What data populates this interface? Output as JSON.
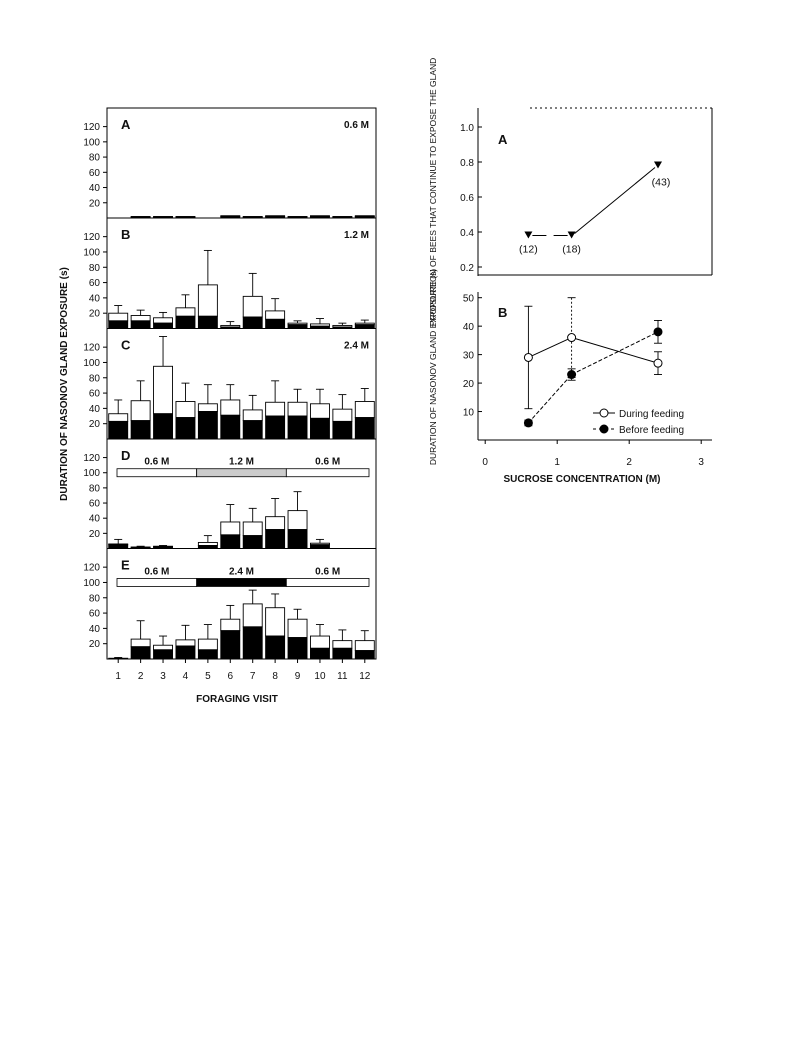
{
  "chart_data": [
    {
      "type": "bar",
      "stacked": true,
      "xlabel": "FORAGING VISIT",
      "ylabel": "DURATION OF NASONOV GLAND EXPOSURE (s)",
      "categories": [
        "1",
        "2",
        "3",
        "4",
        "5",
        "6",
        "7",
        "8",
        "9",
        "10",
        "11",
        "12"
      ],
      "yticks": [
        20,
        40,
        60,
        80,
        100,
        120
      ],
      "ylim": [
        0,
        140
      ],
      "series_names": [
        "Before feeding (black)",
        "During feeding (white)"
      ],
      "panels": [
        {
          "label": "A",
          "concentration": "0.6 M",
          "before": [
            0,
            1,
            1,
            1,
            0,
            2,
            1,
            2,
            1,
            2,
            1,
            2
          ],
          "total": [
            0,
            2,
            2,
            2,
            0,
            3,
            2,
            3,
            2,
            3,
            2,
            3
          ],
          "error": [
            0,
            0,
            0,
            0,
            0,
            0,
            0,
            0,
            0,
            0,
            0,
            0
          ]
        },
        {
          "label": "B",
          "concentration": "1.2 M",
          "before": [
            10,
            10,
            7,
            16,
            16,
            2,
            15,
            12,
            5,
            3,
            2,
            5
          ],
          "total": [
            20,
            17,
            14,
            27,
            57,
            4,
            42,
            23,
            7,
            6,
            4,
            7
          ],
          "error": [
            30,
            24,
            21,
            44,
            102,
            9,
            72,
            39,
            10,
            13,
            7,
            11
          ]
        },
        {
          "label": "C",
          "concentration": "2.4 M",
          "before": [
            23,
            24,
            33,
            28,
            36,
            31,
            24,
            30,
            30,
            27,
            23,
            28
          ],
          "total": [
            33,
            50,
            95,
            49,
            46,
            51,
            38,
            48,
            48,
            46,
            39,
            49
          ],
          "error": [
            51,
            76,
            134,
            73,
            71,
            71,
            57,
            76,
            65,
            65,
            58,
            66
          ]
        },
        {
          "label": "D",
          "segments": [
            {
              "text": "0.6 M",
              "from": 1,
              "to": 4,
              "fill": "#ffffff"
            },
            {
              "text": "1.2 M",
              "from": 5,
              "to": 8,
              "fill": "#cccccc"
            },
            {
              "text": "0.6 M",
              "from": 9,
              "to": 12,
              "fill": "#ffffff"
            }
          ],
          "before": [
            5,
            1,
            2,
            0,
            4,
            18,
            17,
            25,
            25,
            5,
            0,
            0
          ],
          "total": [
            6,
            2,
            3,
            0,
            8,
            35,
            35,
            42,
            50,
            7,
            0,
            0
          ],
          "error": [
            12,
            3,
            4,
            0,
            17,
            58,
            53,
            66,
            75,
            12,
            0,
            0
          ]
        },
        {
          "label": "E",
          "segments": [
            {
              "text": "0.6 M",
              "from": 1,
              "to": 4,
              "fill": "#ffffff"
            },
            {
              "text": "2.4 M",
              "from": 5,
              "to": 8,
              "fill": "#000000"
            },
            {
              "text": "0.6 M",
              "from": 9,
              "to": 12,
              "fill": "#ffffff"
            }
          ],
          "before": [
            1,
            16,
            12,
            17,
            12,
            37,
            42,
            30,
            28,
            14,
            14,
            11
          ],
          "total": [
            1,
            26,
            18,
            25,
            26,
            52,
            72,
            67,
            52,
            30,
            24,
            24
          ],
          "error": [
            2,
            50,
            30,
            44,
            45,
            70,
            90,
            85,
            65,
            45,
            38,
            37
          ]
        }
      ]
    },
    {
      "type": "line",
      "label": "A",
      "ylabel": "PROPORTION OF BEES THAT CONTINUE TO EXPOSE THE GLAND",
      "x": [
        0.6,
        1.2,
        2.4
      ],
      "y": [
        0.38,
        0.38,
        0.78
      ],
      "n_labels": [
        "(12)",
        "(18)",
        "(43)"
      ],
      "yticks": [
        0.2,
        0.4,
        0.6,
        0.8,
        1.0
      ],
      "ytick_labels": [
        "0.2",
        "0.4",
        "0.6",
        "0.8",
        "1.0"
      ],
      "ylim": [
        0.15,
        1.1
      ]
    },
    {
      "type": "line",
      "label": "B",
      "xlabel": "SUCROSE CONCENTRATION (M)",
      "ylabel": "DURATION OF NASONOV GLAND EXPOSURE (s)",
      "x": [
        0.6,
        1.2,
        2.4
      ],
      "series": [
        {
          "name": "During feeding",
          "marker": "open",
          "values": [
            29,
            36,
            27
          ],
          "err": [
            18,
            14,
            4
          ]
        },
        {
          "name": "Before feeding",
          "marker": "filled",
          "values": [
            6,
            23,
            38
          ],
          "err": [
            1,
            2,
            4
          ]
        }
      ],
      "xticks": [
        0,
        1,
        2,
        3
      ],
      "yticks": [
        10,
        20,
        30,
        40,
        50
      ],
      "xlim": [
        -0.1,
        3.15
      ],
      "ylim": [
        0,
        52
      ]
    }
  ]
}
